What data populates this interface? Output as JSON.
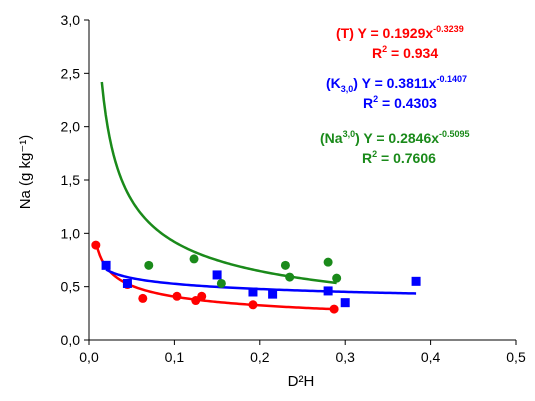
{
  "chart_data": {
    "type": "scatter",
    "xlabel": "D²H",
    "ylabel": "Na (g kg⁻¹)",
    "xlim": [
      0,
      0.5
    ],
    "ylim": [
      0,
      3.0
    ],
    "x_ticks": [
      "0,0",
      "0,1",
      "0,2",
      "0,3",
      "0,4",
      "0,5"
    ],
    "y_ticks": [
      "0,0",
      "0,5",
      "1,0",
      "1,5",
      "2,0",
      "2,5",
      "3,0"
    ],
    "grid": false,
    "series": [
      {
        "color": "#ff0000",
        "marker": "circle",
        "points": [
          [
            0.008,
            0.89
          ],
          [
            0.045,
            0.52
          ],
          [
            0.063,
            0.39
          ],
          [
            0.103,
            0.41
          ],
          [
            0.125,
            0.37
          ],
          [
            0.132,
            0.41
          ],
          [
            0.192,
            0.33
          ],
          [
            0.287,
            0.29
          ]
        ],
        "fit": {
          "a": 0.1929,
          "b": -0.3239,
          "x_from": 0.008,
          "x_to": 0.287
        },
        "equation": {
          "prefix": "(T) Y = 0.1929x",
          "sup": "-0.3239",
          "r2_label": "R",
          "r2_sup": "2",
          "r2_value": " = 0.934"
        }
      },
      {
        "color": "#0000ff",
        "marker": "square",
        "points": [
          [
            0.02,
            0.7
          ],
          [
            0.045,
            0.53
          ],
          [
            0.15,
            0.61
          ],
          [
            0.192,
            0.45
          ],
          [
            0.215,
            0.43
          ],
          [
            0.28,
            0.46
          ],
          [
            0.3,
            0.35
          ],
          [
            0.383,
            0.55
          ]
        ],
        "fit": {
          "a": 0.3811,
          "b": -0.1407,
          "x_from": 0.02,
          "x_to": 0.383
        },
        "equation": {
          "prefix": "(K",
          "sub": "3,0",
          "mid": ") Y = 0.3811x",
          "sup": "-0.1407",
          "r2_label": "R",
          "r2_sup": "2",
          "r2_value": " = 0.4303"
        }
      },
      {
        "color": "#1a8a1a",
        "marker": "circle",
        "points": [
          [
            0.07,
            0.7
          ],
          [
            0.123,
            0.76
          ],
          [
            0.155,
            0.53
          ],
          [
            0.23,
            0.7
          ],
          [
            0.235,
            0.59
          ],
          [
            0.28,
            0.73
          ],
          [
            0.29,
            0.58
          ]
        ],
        "fit": {
          "a": 0.2846,
          "b": -0.5095,
          "x_from": 0.015,
          "x_to": 0.29
        },
        "equation": {
          "prefix": "(Na",
          "sup_inline": "3,0",
          "mid": ") Y = 0.2846x",
          "sup": "-0.5095",
          "r2_label": "R",
          "r2_sup": "2",
          "r2_value": " = 0.7606"
        }
      }
    ]
  }
}
